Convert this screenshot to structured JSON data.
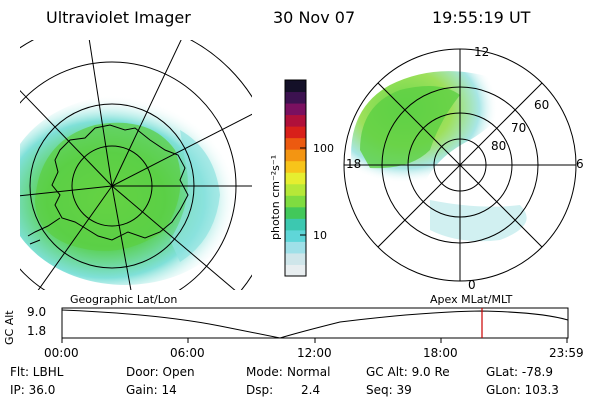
{
  "header": {
    "instrument": "Ultraviolet Imager",
    "date": "30 Nov 07",
    "time": "19:55:19 UT"
  },
  "colorbar": {
    "unit_label": "photon cm⁻²s⁻¹",
    "ticks": [
      "100",
      "10"
    ],
    "colors": [
      "#e8eef0",
      "#cfe6ea",
      "#9fe0e8",
      "#5fd6d8",
      "#3cc8b0",
      "#42c85a",
      "#7fdc40",
      "#b6e838",
      "#e6ee30",
      "#f7c41a",
      "#f39512",
      "#ec5a10",
      "#d8201a",
      "#b0103a",
      "#7a1060",
      "#3c1250",
      "#141028"
    ]
  },
  "left_map": {
    "caption": "Geographic Lat/Lon"
  },
  "right_map": {
    "caption": "Apex MLat/MLT",
    "lat_labels": [
      "60",
      "70",
      "80"
    ],
    "mlt_labels": {
      "top": "12",
      "left": "18",
      "right": "6",
      "bottom": "0"
    }
  },
  "altitude_strip": {
    "ylabel": "GC Alt",
    "y_ticks": [
      "9.0",
      "1.8"
    ],
    "x_ticks": [
      "00:00",
      "06:00",
      "12:00",
      "18:00",
      "23:59"
    ],
    "current_marker_color": "#cc0000"
  },
  "footer": {
    "row1": {
      "filter": "Flt: LBHL",
      "door": "Door: Open",
      "mode_label": "Mode:",
      "mode_value": "Normal",
      "gc_alt": "GC Alt: 9.0 Re",
      "glat": "GLat: -78.9"
    },
    "row2": {
      "ip": "IP: 36.0",
      "gain": "Gain: 14",
      "dsp_label": "Dsp:",
      "dsp_value": "2.4",
      "seq": "Seq: 39",
      "glon": "GLon: 103.3"
    }
  }
}
